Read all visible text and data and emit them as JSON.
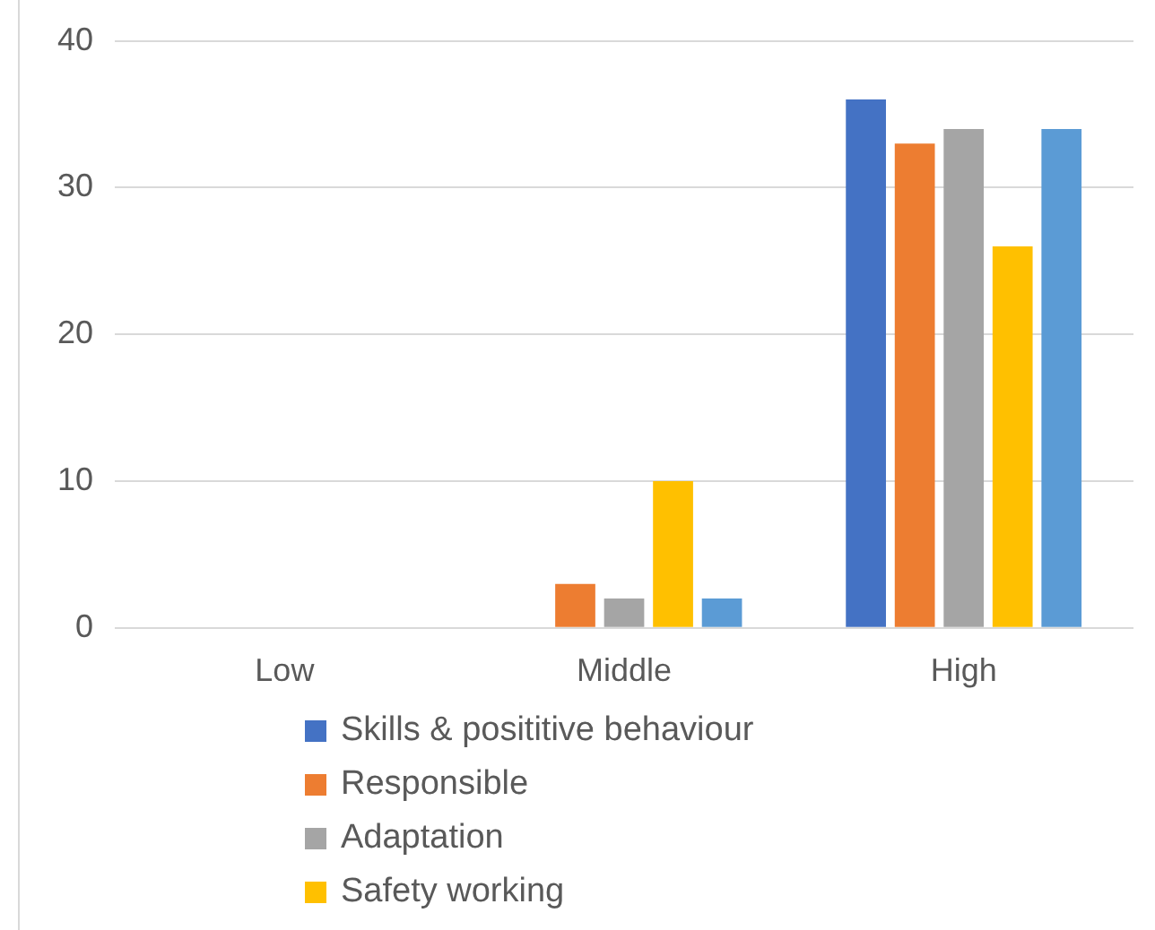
{
  "chart_data": {
    "type": "bar",
    "categories": [
      "Low",
      "Middle",
      "High"
    ],
    "series": [
      {
        "name": "Skills & posititive behaviour",
        "color": "#4472c4",
        "values": [
          0,
          0,
          36
        ]
      },
      {
        "name": "Responsible",
        "color": "#ed7d31",
        "values": [
          0,
          3,
          33
        ]
      },
      {
        "name": "Adaptation",
        "color": "#a5a5a5",
        "values": [
          0,
          2,
          34
        ]
      },
      {
        "name": "Safety working",
        "color": "#ffc000",
        "values": [
          0,
          10,
          26
        ]
      },
      {
        "color": "#5b9bd5",
        "values": [
          0,
          2,
          34
        ]
      }
    ],
    "ylim": [
      0,
      40
    ],
    "yticks": [
      0,
      10,
      20,
      30,
      40
    ],
    "grid": "y",
    "legend": "bottom"
  }
}
